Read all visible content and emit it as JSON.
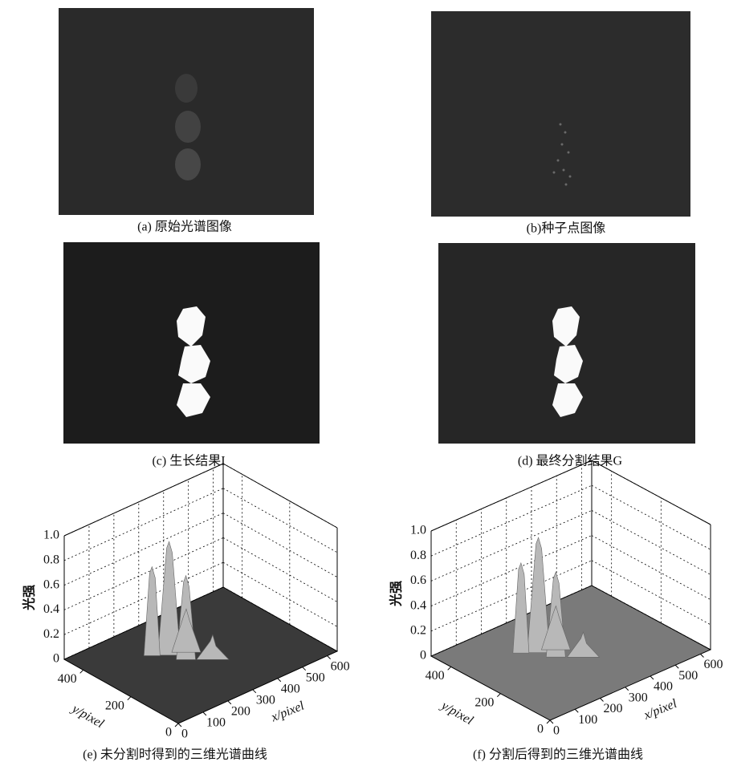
{
  "panels": [
    {
      "caption": "(a) 原始光谱图像"
    },
    {
      "caption": "(b)种子点图像"
    },
    {
      "caption": "(c) 生长结果I"
    },
    {
      "caption": "(d) 最终分割结果G"
    }
  ],
  "plots": [
    {
      "caption": "(e) 未分割时得到的三维光谱曲线",
      "zlabel": "光强",
      "ylabel": "y/pixel",
      "xlabel": "x/pixel",
      "xlim": [
        0,
        640
      ],
      "ylim": [
        0,
        480
      ],
      "zlim": [
        0,
        1
      ],
      "xticks": [
        0,
        100,
        200,
        300,
        400,
        500,
        600
      ],
      "yticks": [
        0,
        200,
        400
      ],
      "zticks": [
        0,
        0.2,
        0.4,
        0.6,
        0.8,
        {
          "value": 1,
          "label": "1.0"
        }
      ]
    },
    {
      "caption": "(f) 分割后得到的三维光谱曲线",
      "zlabel": "光强",
      "ylabel": "y/pixel",
      "xlabel": "x/pixel",
      "xlim": [
        0,
        640
      ],
      "ylim": [
        0,
        480
      ],
      "zlim": [
        0,
        1
      ],
      "xticks": [
        0,
        100,
        200,
        300,
        400,
        500,
        600
      ],
      "yticks": [
        0,
        200,
        400
      ],
      "zticks": [
        0,
        0.2,
        0.4,
        0.6,
        0.8,
        {
          "value": 1,
          "label": "1.0"
        }
      ]
    }
  ]
}
